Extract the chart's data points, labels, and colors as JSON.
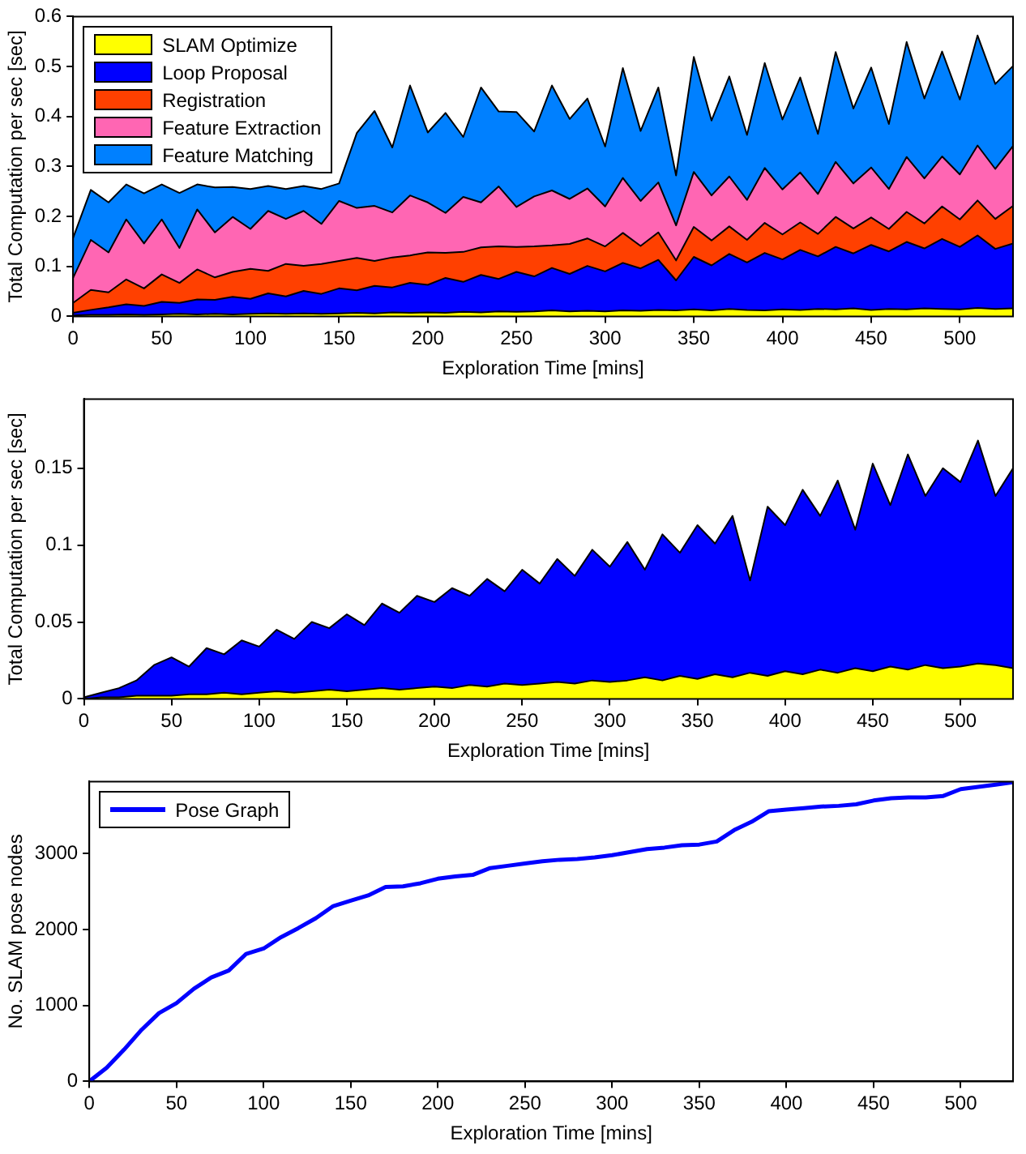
{
  "chart_data": [
    {
      "type": "area",
      "stacked": true,
      "xlabel": "Exploration Time [mins]",
      "ylabel": "Total Computation per sec [sec]",
      "legend": "top left",
      "grid": false,
      "x": [
        0,
        10,
        20,
        30,
        40,
        50,
        60,
        70,
        80,
        90,
        100,
        110,
        120,
        130,
        140,
        150,
        160,
        170,
        180,
        190,
        200,
        210,
        220,
        230,
        240,
        250,
        260,
        270,
        280,
        290,
        300,
        310,
        320,
        330,
        340,
        350,
        360,
        370,
        380,
        390,
        400,
        410,
        420,
        430,
        440,
        450,
        460,
        470,
        480,
        490,
        500,
        510,
        520,
        530
      ],
      "xlim": [
        0,
        530
      ],
      "xticks": [
        0,
        50,
        100,
        150,
        200,
        250,
        300,
        350,
        400,
        450,
        500
      ],
      "ylim": [
        0,
        0.6
      ],
      "yticks": [
        0,
        0.1,
        0.2,
        0.3,
        0.4,
        0.5,
        0.6
      ],
      "series": [
        {
          "name": "SLAM Optimize",
          "color": "#ffff00",
          "values": [
            0.002,
            0.003,
            0.003,
            0.004,
            0.003,
            0.004,
            0.005,
            0.004,
            0.005,
            0.004,
            0.005,
            0.006,
            0.005,
            0.006,
            0.005,
            0.006,
            0.007,
            0.006,
            0.008,
            0.007,
            0.008,
            0.007,
            0.009,
            0.008,
            0.01,
            0.009,
            0.01,
            0.012,
            0.01,
            0.011,
            0.01,
            0.012,
            0.011,
            0.013,
            0.012,
            0.014,
            0.012,
            0.015,
            0.013,
            0.012,
            0.014,
            0.013,
            0.015,
            0.014,
            0.016,
            0.013,
            0.015,
            0.014,
            0.016,
            0.015,
            0.014,
            0.017,
            0.015,
            0.016
          ]
        },
        {
          "name": "Loop Proposal",
          "color": "#0000ff",
          "values": [
            0.005,
            0.01,
            0.015,
            0.02,
            0.018,
            0.025,
            0.022,
            0.03,
            0.028,
            0.035,
            0.03,
            0.04,
            0.035,
            0.045,
            0.04,
            0.05,
            0.045,
            0.055,
            0.05,
            0.06,
            0.055,
            0.07,
            0.06,
            0.075,
            0.065,
            0.08,
            0.07,
            0.085,
            0.075,
            0.09,
            0.08,
            0.095,
            0.085,
            0.1,
            0.06,
            0.105,
            0.09,
            0.11,
            0.095,
            0.115,
            0.1,
            0.12,
            0.105,
            0.125,
            0.11,
            0.13,
            0.115,
            0.135,
            0.12,
            0.14,
            0.125,
            0.145,
            0.12,
            0.13
          ]
        },
        {
          "name": "Registration",
          "color": "#ff4000",
          "values": [
            0.02,
            0.04,
            0.03,
            0.05,
            0.035,
            0.055,
            0.04,
            0.06,
            0.045,
            0.05,
            0.06,
            0.045,
            0.065,
            0.05,
            0.06,
            0.055,
            0.065,
            0.05,
            0.06,
            0.055,
            0.065,
            0.05,
            0.06,
            0.055,
            0.065,
            0.05,
            0.06,
            0.045,
            0.06,
            0.055,
            0.05,
            0.06,
            0.045,
            0.055,
            0.04,
            0.06,
            0.05,
            0.055,
            0.045,
            0.06,
            0.05,
            0.055,
            0.045,
            0.06,
            0.05,
            0.055,
            0.045,
            0.06,
            0.05,
            0.065,
            0.055,
            0.07,
            0.06,
            0.075
          ]
        },
        {
          "name": "Feature Extraction",
          "color": "#ff66b3",
          "values": [
            0.05,
            0.1,
            0.08,
            0.12,
            0.09,
            0.11,
            0.07,
            0.12,
            0.09,
            0.11,
            0.08,
            0.12,
            0.09,
            0.11,
            0.08,
            0.12,
            0.1,
            0.11,
            0.09,
            0.12,
            0.1,
            0.08,
            0.11,
            0.09,
            0.12,
            0.08,
            0.1,
            0.11,
            0.09,
            0.1,
            0.08,
            0.11,
            0.09,
            0.1,
            0.07,
            0.11,
            0.09,
            0.1,
            0.08,
            0.11,
            0.09,
            0.1,
            0.08,
            0.11,
            0.09,
            0.1,
            0.08,
            0.11,
            0.09,
            0.1,
            0.09,
            0.11,
            0.1,
            0.12
          ]
        },
        {
          "name": "Feature Matching",
          "color": "#0080ff",
          "values": [
            0.08,
            0.1,
            0.1,
            0.07,
            0.1,
            0.07,
            0.11,
            0.05,
            0.09,
            0.06,
            0.08,
            0.05,
            0.06,
            0.05,
            0.07,
            0.035,
            0.15,
            0.19,
            0.13,
            0.22,
            0.14,
            0.2,
            0.12,
            0.23,
            0.15,
            0.19,
            0.13,
            0.21,
            0.16,
            0.18,
            0.12,
            0.22,
            0.14,
            0.19,
            0.1,
            0.23,
            0.15,
            0.2,
            0.13,
            0.21,
            0.14,
            0.19,
            0.12,
            0.22,
            0.15,
            0.2,
            0.13,
            0.23,
            0.16,
            0.21,
            0.15,
            0.22,
            0.17,
            0.16
          ]
        }
      ]
    },
    {
      "type": "area",
      "stacked": true,
      "xlabel": "Exploration Time [mins]",
      "ylabel": "Total Computation per sec [sec]",
      "grid": false,
      "x": [
        0,
        10,
        20,
        30,
        40,
        50,
        60,
        70,
        80,
        90,
        100,
        110,
        120,
        130,
        140,
        150,
        160,
        170,
        180,
        190,
        200,
        210,
        220,
        230,
        240,
        250,
        260,
        270,
        280,
        290,
        300,
        310,
        320,
        330,
        340,
        350,
        360,
        370,
        380,
        390,
        400,
        410,
        420,
        430,
        440,
        450,
        460,
        470,
        480,
        490,
        500,
        510,
        520,
        530
      ],
      "xlim": [
        0,
        530
      ],
      "xticks": [
        0,
        50,
        100,
        150,
        200,
        250,
        300,
        350,
        400,
        450,
        500
      ],
      "ylim": [
        0,
        0.195
      ],
      "yticks": [
        0,
        0.05,
        0.1,
        0.15
      ],
      "series": [
        {
          "color": "#ffff00",
          "values": [
            0.0,
            0.001,
            0.001,
            0.002,
            0.002,
            0.002,
            0.003,
            0.003,
            0.004,
            0.003,
            0.004,
            0.005,
            0.004,
            0.005,
            0.006,
            0.005,
            0.006,
            0.007,
            0.006,
            0.007,
            0.008,
            0.007,
            0.009,
            0.008,
            0.01,
            0.009,
            0.01,
            0.011,
            0.01,
            0.012,
            0.011,
            0.012,
            0.014,
            0.012,
            0.015,
            0.013,
            0.016,
            0.014,
            0.017,
            0.015,
            0.018,
            0.016,
            0.019,
            0.017,
            0.02,
            0.018,
            0.021,
            0.019,
            0.022,
            0.02,
            0.021,
            0.023,
            0.022,
            0.02
          ]
        },
        {
          "color": "#0000ff",
          "values": [
            0.001,
            0.003,
            0.006,
            0.01,
            0.02,
            0.025,
            0.018,
            0.03,
            0.025,
            0.035,
            0.03,
            0.04,
            0.035,
            0.045,
            0.04,
            0.05,
            0.042,
            0.055,
            0.05,
            0.06,
            0.055,
            0.065,
            0.058,
            0.07,
            0.06,
            0.075,
            0.065,
            0.08,
            0.07,
            0.085,
            0.075,
            0.09,
            0.07,
            0.095,
            0.08,
            0.1,
            0.085,
            0.105,
            0.06,
            0.11,
            0.095,
            0.12,
            0.1,
            0.125,
            0.09,
            0.135,
            0.105,
            0.14,
            0.11,
            0.13,
            0.12,
            0.145,
            0.11,
            0.13
          ]
        }
      ]
    },
    {
      "type": "line",
      "xlabel": "Exploration Time [mins]",
      "ylabel": "No. SLAM pose nodes",
      "legend": "top left",
      "grid": false,
      "x": [
        0,
        10,
        20,
        30,
        40,
        50,
        60,
        70,
        80,
        90,
        100,
        110,
        120,
        130,
        140,
        150,
        160,
        170,
        180,
        190,
        200,
        210,
        220,
        230,
        240,
        250,
        260,
        270,
        280,
        290,
        300,
        310,
        320,
        330,
        340,
        350,
        360,
        370,
        380,
        390,
        400,
        410,
        420,
        430,
        440,
        450,
        460,
        470,
        480,
        490,
        500,
        510,
        520,
        530
      ],
      "xlim": [
        0,
        530
      ],
      "xticks": [
        0,
        50,
        100,
        150,
        200,
        250,
        300,
        350,
        400,
        450,
        500
      ],
      "ylim": [
        0,
        3950
      ],
      "yticks": [
        0,
        1000,
        2000,
        3000
      ],
      "series": [
        {
          "name": "Pose Graph",
          "color": "#0000ff",
          "values": [
            0,
            180,
            420,
            680,
            900,
            1030,
            1220,
            1370,
            1460,
            1680,
            1750,
            1900,
            2020,
            2150,
            2310,
            2380,
            2450,
            2560,
            2570,
            2610,
            2670,
            2700,
            2720,
            2810,
            2840,
            2870,
            2900,
            2920,
            2930,
            2950,
            2980,
            3020,
            3060,
            3080,
            3110,
            3120,
            3160,
            3310,
            3420,
            3560,
            3580,
            3600,
            3620,
            3630,
            3650,
            3700,
            3730,
            3740,
            3740,
            3760,
            3850,
            3880,
            3910,
            3940
          ]
        }
      ]
    }
  ]
}
